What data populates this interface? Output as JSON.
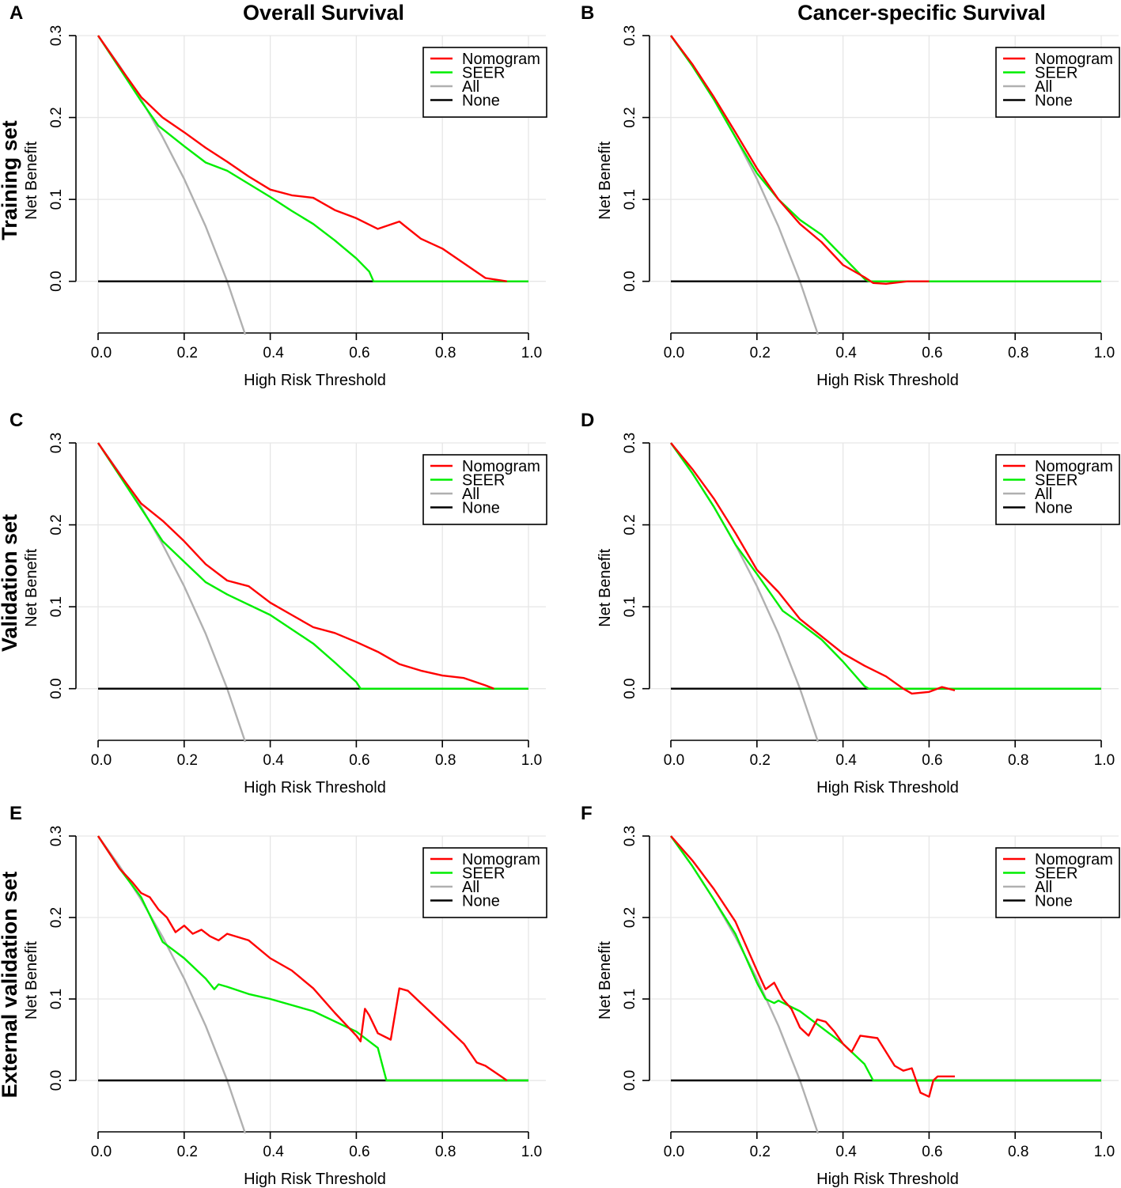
{
  "column_titles": [
    "Overall Survival",
    "Cancer-specific Survival"
  ],
  "row_titles": [
    "Training set",
    "Validation set",
    "External validation set"
  ],
  "colors": {
    "nomogram": "#ff0000",
    "seer": "#00ee00",
    "all": "#b0b0b0",
    "none": "#000000",
    "grid": "#e6e6e6"
  },
  "chart_data": [
    {
      "panel": "A",
      "type": "line",
      "xlabel": "High Risk Threshold",
      "ylabel": "Net Benefit",
      "xlim": [
        0,
        1
      ],
      "ylim": [
        -0.065,
        0.3
      ],
      "xticks": [
        "0.0",
        "0.2",
        "0.4",
        "0.6",
        "0.8",
        "1.0"
      ],
      "yticks": [
        "0.0",
        "0.1",
        "0.2",
        "0.3"
      ],
      "legend": [
        "Nomogram",
        "SEER",
        "All",
        "None"
      ],
      "legend_position": "top-right",
      "series": [
        {
          "name": "Nomogram",
          "x": [
            0,
            0.05,
            0.1,
            0.15,
            0.2,
            0.25,
            0.3,
            0.35,
            0.4,
            0.45,
            0.5,
            0.55,
            0.6,
            0.65,
            0.7,
            0.75,
            0.8,
            0.85,
            0.9,
            0.95
          ],
          "y": [
            0.3,
            0.262,
            0.225,
            0.2,
            0.182,
            0.163,
            0.146,
            0.128,
            0.112,
            0.105,
            0.102,
            0.087,
            0.077,
            0.064,
            0.073,
            0.052,
            0.04,
            0.022,
            0.004,
            0.0
          ]
        },
        {
          "name": "SEER",
          "x": [
            0,
            0.05,
            0.1,
            0.14,
            0.2,
            0.25,
            0.3,
            0.4,
            0.45,
            0.5,
            0.55,
            0.6,
            0.63,
            0.64,
            1.0
          ],
          "y": [
            0.3,
            0.26,
            0.22,
            0.19,
            0.165,
            0.145,
            0.135,
            0.103,
            0.086,
            0.07,
            0.05,
            0.028,
            0.012,
            0.0,
            0.0
          ]
        },
        {
          "name": "All",
          "x": [
            0,
            0.05,
            0.1,
            0.15,
            0.2,
            0.25,
            0.3,
            0.342
          ],
          "y": [
            0.3,
            0.263,
            0.222,
            0.176,
            0.125,
            0.067,
            0.0,
            -0.065
          ]
        },
        {
          "name": "None",
          "x": [
            0,
            1.0
          ],
          "y": [
            0,
            0
          ]
        }
      ]
    },
    {
      "panel": "B",
      "type": "line",
      "xlabel": "High Risk Threshold",
      "ylabel": "Net Benefit",
      "xlim": [
        0,
        1
      ],
      "ylim": [
        -0.065,
        0.3
      ],
      "xticks": [
        "0.0",
        "0.2",
        "0.4",
        "0.6",
        "0.8",
        "1.0"
      ],
      "yticks": [
        "0.0",
        "0.1",
        "0.2",
        "0.3"
      ],
      "legend": [
        "Nomogram",
        "SEER",
        "All",
        "None"
      ],
      "legend_position": "top-right",
      "series": [
        {
          "name": "Nomogram",
          "x": [
            0,
            0.05,
            0.1,
            0.15,
            0.2,
            0.25,
            0.3,
            0.35,
            0.4,
            0.45,
            0.47,
            0.5,
            0.55,
            0.6
          ],
          "y": [
            0.3,
            0.265,
            0.225,
            0.182,
            0.138,
            0.1,
            0.07,
            0.048,
            0.02,
            0.005,
            -0.002,
            -0.003,
            0.0,
            0.0
          ]
        },
        {
          "name": "SEER",
          "x": [
            0,
            0.05,
            0.1,
            0.15,
            0.2,
            0.25,
            0.3,
            0.35,
            0.4,
            0.45,
            0.46,
            1.0
          ],
          "y": [
            0.3,
            0.263,
            0.222,
            0.176,
            0.132,
            0.1,
            0.075,
            0.057,
            0.03,
            0.003,
            0.0,
            0.0
          ]
        },
        {
          "name": "All",
          "x": [
            0,
            0.05,
            0.1,
            0.15,
            0.2,
            0.25,
            0.3,
            0.342
          ],
          "y": [
            0.3,
            0.263,
            0.222,
            0.176,
            0.125,
            0.067,
            0.0,
            -0.065
          ]
        },
        {
          "name": "None",
          "x": [
            0,
            1.0
          ],
          "y": [
            0,
            0
          ]
        }
      ]
    },
    {
      "panel": "C",
      "type": "line",
      "xlabel": "High Risk Threshold",
      "ylabel": "Net Benefit",
      "xlim": [
        0,
        1
      ],
      "ylim": [
        -0.065,
        0.3
      ],
      "xticks": [
        "0.0",
        "0.2",
        "0.4",
        "0.6",
        "0.8",
        "1.0"
      ],
      "yticks": [
        "0.0",
        "0.1",
        "0.2",
        "0.3"
      ],
      "legend": [
        "Nomogram",
        "SEER",
        "All",
        "None"
      ],
      "legend_position": "top-right",
      "series": [
        {
          "name": "Nomogram",
          "x": [
            0,
            0.05,
            0.1,
            0.15,
            0.2,
            0.25,
            0.3,
            0.35,
            0.4,
            0.45,
            0.5,
            0.55,
            0.6,
            0.65,
            0.7,
            0.75,
            0.8,
            0.85,
            0.9,
            0.92
          ],
          "y": [
            0.3,
            0.262,
            0.226,
            0.205,
            0.18,
            0.152,
            0.132,
            0.125,
            0.105,
            0.09,
            0.075,
            0.068,
            0.057,
            0.045,
            0.03,
            0.022,
            0.016,
            0.013,
            0.004,
            0.0
          ]
        },
        {
          "name": "SEER",
          "x": [
            0,
            0.05,
            0.1,
            0.15,
            0.2,
            0.25,
            0.3,
            0.4,
            0.5,
            0.55,
            0.6,
            0.61,
            1.0
          ],
          "y": [
            0.3,
            0.26,
            0.22,
            0.18,
            0.155,
            0.13,
            0.115,
            0.09,
            0.055,
            0.032,
            0.008,
            0.0,
            0.0
          ]
        },
        {
          "name": "All",
          "x": [
            0,
            0.05,
            0.1,
            0.15,
            0.2,
            0.25,
            0.3,
            0.342
          ],
          "y": [
            0.3,
            0.263,
            0.222,
            0.176,
            0.125,
            0.067,
            0.0,
            -0.065
          ]
        },
        {
          "name": "None",
          "x": [
            0,
            1.0
          ],
          "y": [
            0,
            0
          ]
        }
      ]
    },
    {
      "panel": "D",
      "type": "line",
      "xlabel": "High Risk Threshold",
      "ylabel": "Net Benefit",
      "xlim": [
        0,
        1
      ],
      "ylim": [
        -0.065,
        0.3
      ],
      "xticks": [
        "0.0",
        "0.2",
        "0.4",
        "0.6",
        "0.8",
        "1.0"
      ],
      "yticks": [
        "0.0",
        "0.1",
        "0.2",
        "0.3"
      ],
      "legend": [
        "Nomogram",
        "SEER",
        "All",
        "None"
      ],
      "legend_position": "top-right",
      "series": [
        {
          "name": "Nomogram",
          "x": [
            0,
            0.05,
            0.1,
            0.15,
            0.2,
            0.25,
            0.3,
            0.35,
            0.4,
            0.45,
            0.5,
            0.54,
            0.56,
            0.6,
            0.63,
            0.66
          ],
          "y": [
            0.3,
            0.268,
            0.232,
            0.19,
            0.145,
            0.118,
            0.085,
            0.064,
            0.043,
            0.028,
            0.015,
            0.0,
            -0.006,
            -0.004,
            0.002,
            -0.002
          ]
        },
        {
          "name": "SEER",
          "x": [
            0,
            0.05,
            0.1,
            0.15,
            0.2,
            0.26,
            0.3,
            0.35,
            0.4,
            0.45,
            0.46,
            1.0
          ],
          "y": [
            0.3,
            0.263,
            0.222,
            0.176,
            0.14,
            0.095,
            0.08,
            0.06,
            0.033,
            0.003,
            0.0,
            0.0
          ]
        },
        {
          "name": "All",
          "x": [
            0,
            0.05,
            0.1,
            0.15,
            0.2,
            0.25,
            0.3,
            0.342
          ],
          "y": [
            0.3,
            0.263,
            0.222,
            0.176,
            0.125,
            0.067,
            0.0,
            -0.065
          ]
        },
        {
          "name": "None",
          "x": [
            0,
            1.0
          ],
          "y": [
            0,
            0
          ]
        }
      ]
    },
    {
      "panel": "E",
      "type": "line",
      "xlabel": "High Risk Threshold",
      "ylabel": "Net Benefit",
      "xlim": [
        0,
        1
      ],
      "ylim": [
        -0.065,
        0.3
      ],
      "xticks": [
        "0.0",
        "0.2",
        "0.4",
        "0.6",
        "0.8",
        "1.0"
      ],
      "yticks": [
        "0.0",
        "0.1",
        "0.2",
        "0.3"
      ],
      "legend": [
        "Nomogram",
        "SEER",
        "All",
        "None"
      ],
      "legend_position": "top-right",
      "series": [
        {
          "name": "Nomogram",
          "x": [
            0,
            0.05,
            0.08,
            0.1,
            0.12,
            0.14,
            0.16,
            0.18,
            0.2,
            0.22,
            0.24,
            0.26,
            0.28,
            0.3,
            0.35,
            0.4,
            0.45,
            0.5,
            0.55,
            0.6,
            0.61,
            0.62,
            0.63,
            0.65,
            0.68,
            0.7,
            0.72,
            0.75,
            0.8,
            0.85,
            0.88,
            0.9,
            0.95
          ],
          "y": [
            0.3,
            0.26,
            0.243,
            0.23,
            0.225,
            0.21,
            0.2,
            0.182,
            0.19,
            0.18,
            0.185,
            0.177,
            0.172,
            0.18,
            0.172,
            0.15,
            0.135,
            0.113,
            0.083,
            0.055,
            0.048,
            0.088,
            0.08,
            0.058,
            0.05,
            0.113,
            0.11,
            0.095,
            0.07,
            0.045,
            0.022,
            0.018,
            0.0
          ]
        },
        {
          "name": "SEER",
          "x": [
            0,
            0.05,
            0.1,
            0.15,
            0.2,
            0.25,
            0.27,
            0.28,
            0.3,
            0.35,
            0.4,
            0.5,
            0.6,
            0.65,
            0.66,
            0.67,
            1.0
          ],
          "y": [
            0.3,
            0.26,
            0.225,
            0.17,
            0.15,
            0.125,
            0.112,
            0.118,
            0.115,
            0.106,
            0.1,
            0.085,
            0.06,
            0.04,
            0.02,
            0.0,
            0.0
          ]
        },
        {
          "name": "All",
          "x": [
            0,
            0.05,
            0.1,
            0.15,
            0.2,
            0.25,
            0.3,
            0.342
          ],
          "y": [
            0.3,
            0.263,
            0.222,
            0.176,
            0.125,
            0.067,
            0.0,
            -0.065
          ]
        },
        {
          "name": "None",
          "x": [
            0,
            1.0
          ],
          "y": [
            0,
            0
          ]
        }
      ]
    },
    {
      "panel": "F",
      "type": "line",
      "xlabel": "High Risk Threshold",
      "ylabel": "Net Benefit",
      "xlim": [
        0,
        1
      ],
      "ylim": [
        -0.065,
        0.3
      ],
      "xticks": [
        "0.0",
        "0.2",
        "0.4",
        "0.6",
        "0.8",
        "1.0"
      ],
      "yticks": [
        "0.0",
        "0.1",
        "0.2",
        "0.3"
      ],
      "legend": [
        "Nomogram",
        "SEER",
        "All",
        "None"
      ],
      "legend_position": "top-right",
      "series": [
        {
          "name": "Nomogram",
          "x": [
            0,
            0.05,
            0.1,
            0.15,
            0.2,
            0.22,
            0.24,
            0.26,
            0.28,
            0.3,
            0.32,
            0.34,
            0.36,
            0.38,
            0.4,
            0.42,
            0.44,
            0.48,
            0.5,
            0.52,
            0.54,
            0.56,
            0.58,
            0.6,
            0.61,
            0.62,
            0.64,
            0.66
          ],
          "y": [
            0.3,
            0.27,
            0.235,
            0.195,
            0.135,
            0.112,
            0.12,
            0.1,
            0.088,
            0.065,
            0.055,
            0.075,
            0.072,
            0.06,
            0.045,
            0.035,
            0.055,
            0.052,
            0.035,
            0.018,
            0.012,
            0.015,
            -0.015,
            -0.02,
            0.0,
            0.005,
            0.005,
            0.005
          ]
        },
        {
          "name": "SEER",
          "x": [
            0,
            0.05,
            0.1,
            0.15,
            0.2,
            0.22,
            0.24,
            0.25,
            0.3,
            0.35,
            0.4,
            0.45,
            0.47,
            1.0
          ],
          "y": [
            0.3,
            0.263,
            0.222,
            0.18,
            0.12,
            0.1,
            0.095,
            0.098,
            0.085,
            0.065,
            0.045,
            0.02,
            0.0,
            0.0
          ]
        },
        {
          "name": "All",
          "x": [
            0,
            0.05,
            0.1,
            0.15,
            0.2,
            0.25,
            0.3,
            0.342
          ],
          "y": [
            0.3,
            0.263,
            0.222,
            0.176,
            0.125,
            0.067,
            0.0,
            -0.065
          ]
        },
        {
          "name": "None",
          "x": [
            0,
            1.0
          ],
          "y": [
            0,
            0
          ]
        }
      ]
    }
  ]
}
